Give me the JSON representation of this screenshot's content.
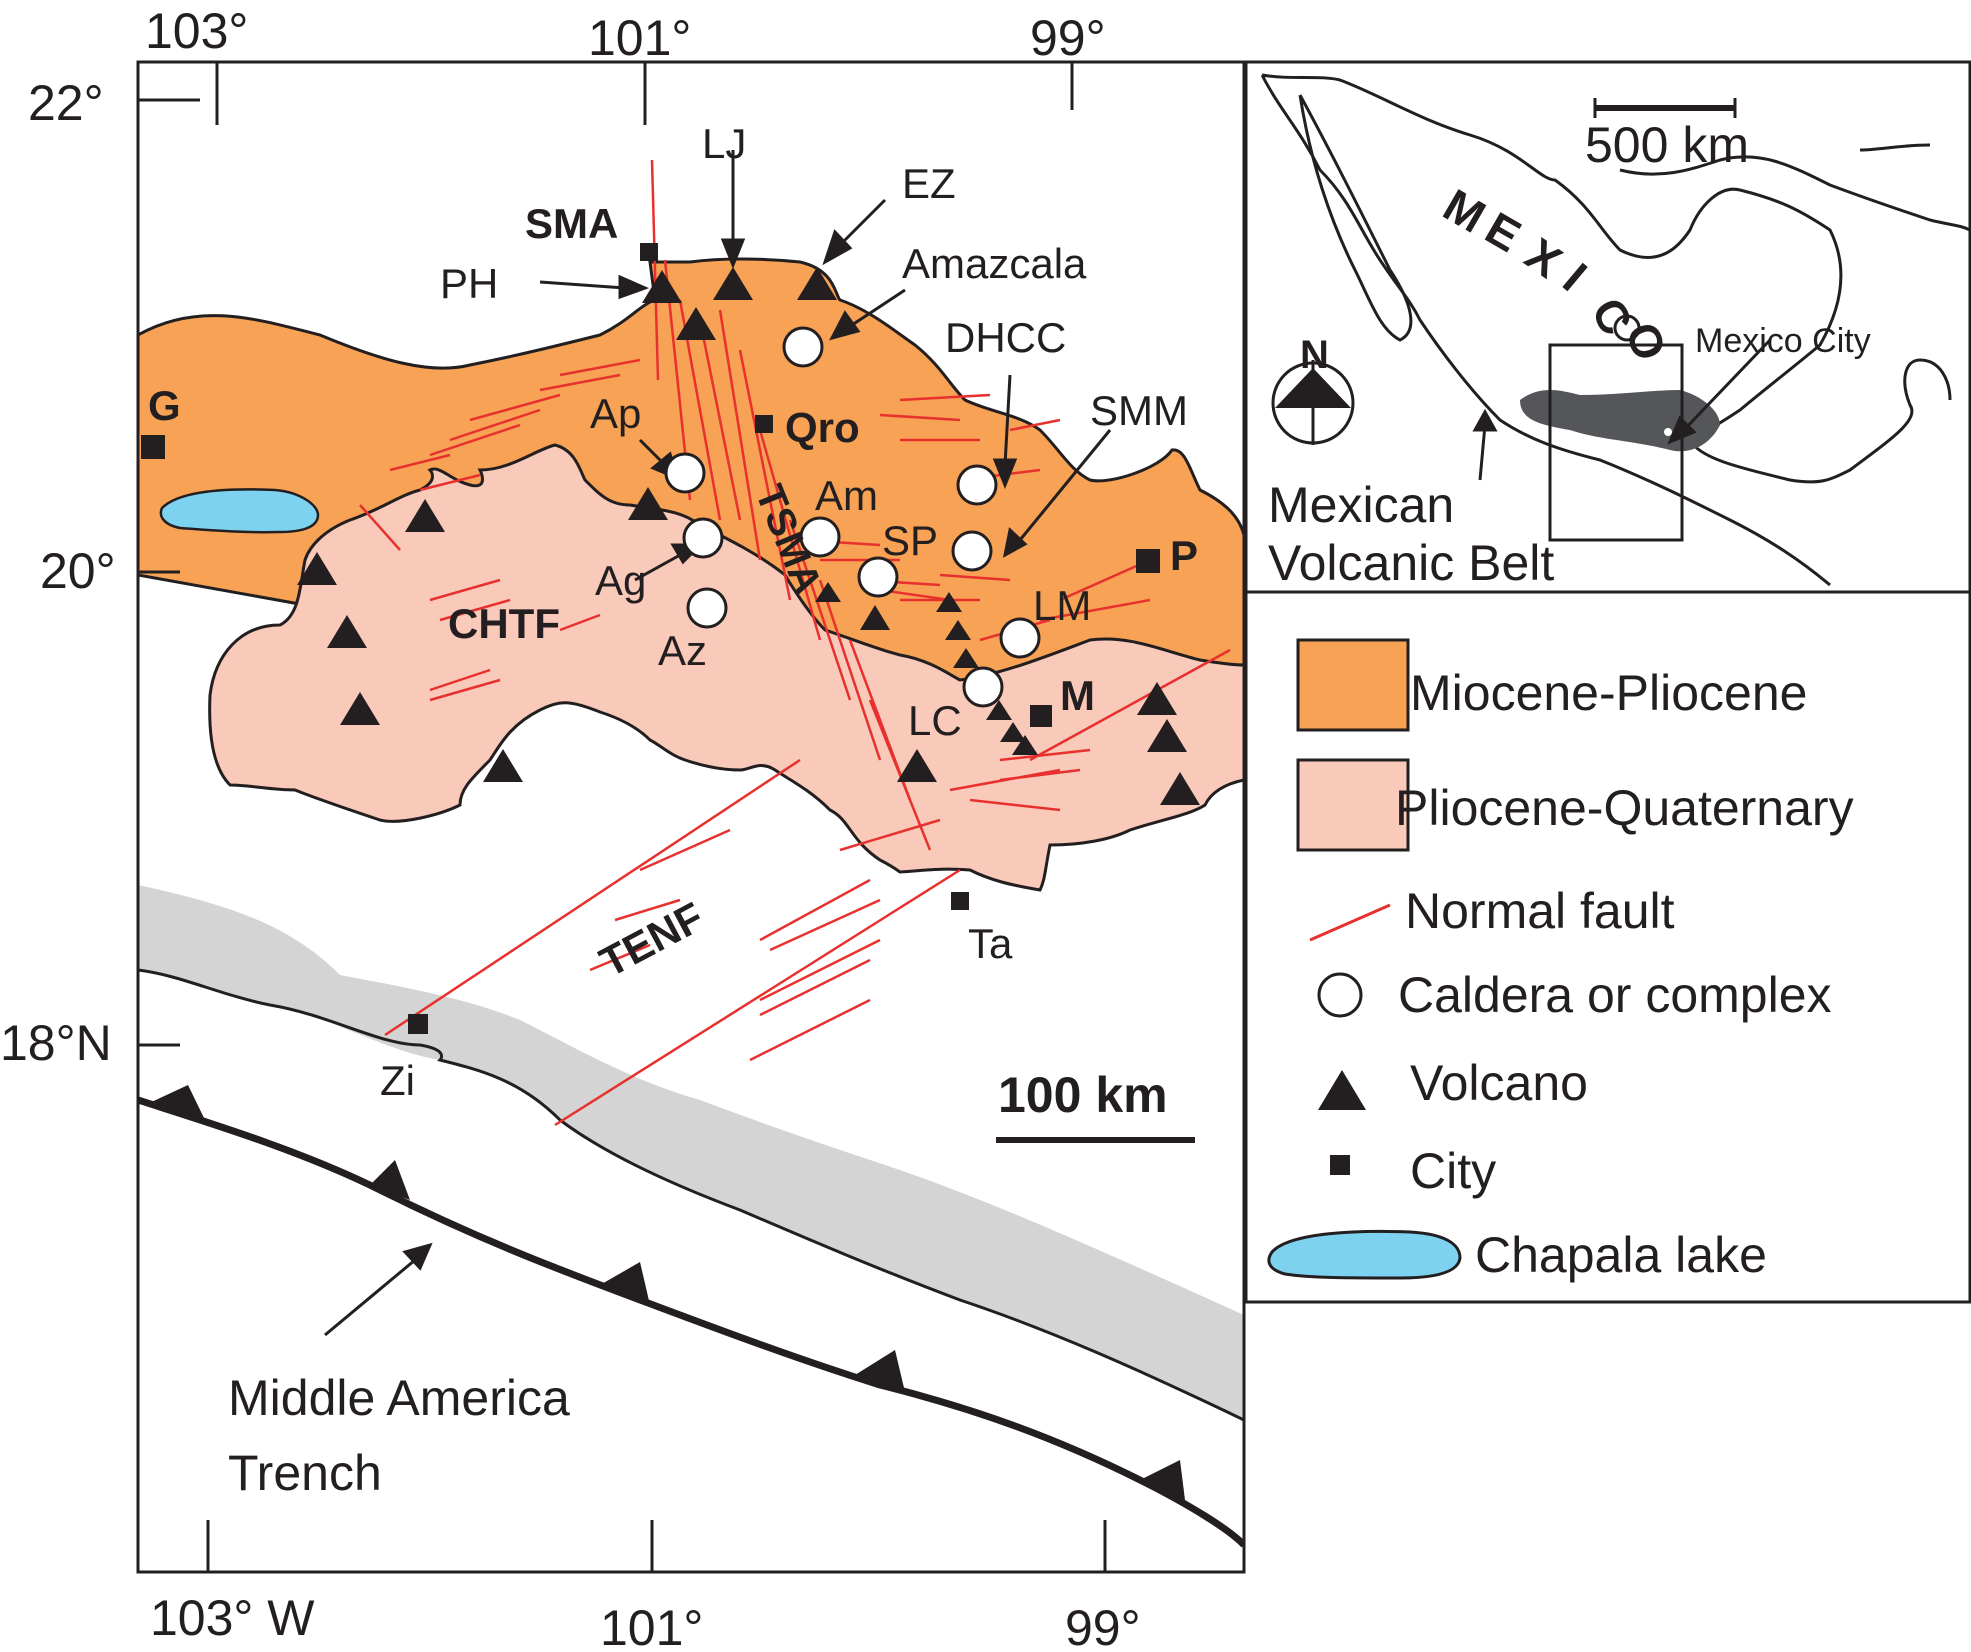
{
  "colors": {
    "miocene_pliocene": "#f7a254",
    "pliocene_quaternary": "#f9c9b9",
    "normal_fault": "#e8312f",
    "chapala_lake": "#7dd3ef",
    "coastal_band": "#d3d4d3",
    "volcanic_belt": "#555659",
    "ink": "#231f20"
  },
  "axes": {
    "top_lon": [
      "103°",
      "101°",
      "99°"
    ],
    "bottom_lon": [
      "103° W",
      "101°",
      "99°"
    ],
    "lat": [
      "22°",
      "20°",
      "18°N"
    ]
  },
  "scale_bar_main": "100 km",
  "cities": [
    "SMA",
    "Qro",
    "G",
    "P",
    "M",
    "Ta",
    "Zi"
  ],
  "calderas": [
    "Amazcala",
    "DHCC",
    "Ap",
    "Am",
    "Ag",
    "Az",
    "SP",
    "LM",
    "LC"
  ],
  "volcano_labels": [
    "LJ",
    "EZ",
    "PH"
  ],
  "pointer_labels": [
    "SMM"
  ],
  "structures": [
    "CHTF",
    "TSMA",
    "TENF"
  ],
  "trench_label": [
    "Middle America",
    "Trench"
  ],
  "inset": {
    "country": "MEXICO",
    "scale_bar": "500 km",
    "north_arrow": "N",
    "mexico_city": "Mexico City",
    "belt_label": [
      "Mexican",
      "Volcanic Belt"
    ]
  },
  "legend": [
    {
      "icon": "miocene-pliocene-swatch",
      "label": "Miocene-Pliocene"
    },
    {
      "icon": "pliocene-quaternary-swatch",
      "label": "Pliocene-Quaternary"
    },
    {
      "icon": "fault-line-icon",
      "label": "Normal fault"
    },
    {
      "icon": "caldera-circle-icon",
      "label": "Caldera or complex"
    },
    {
      "icon": "volcano-triangle-icon",
      "label": "Volcano"
    },
    {
      "icon": "city-square-icon",
      "label": "City"
    },
    {
      "icon": "lake-icon",
      "label": "Chapala lake"
    }
  ]
}
